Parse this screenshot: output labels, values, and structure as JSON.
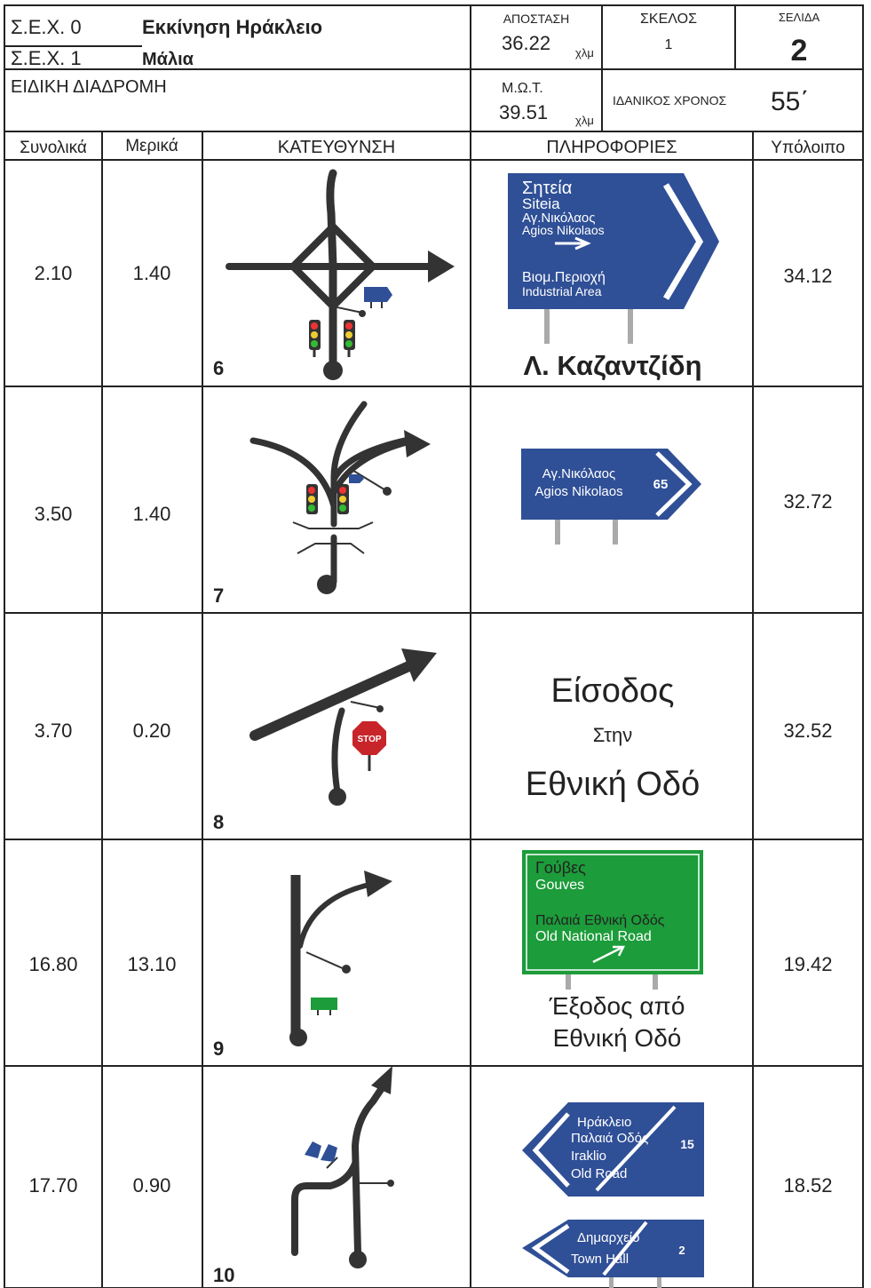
{
  "header": {
    "sex0_label": "Σ.Ε.Χ. 0",
    "sex0_name": "Εκκίνηση Ηράκλειο",
    "sex1_label": "Σ.Ε.Χ. 1",
    "sex1_name": "Μάλια",
    "stage": "ΕΙΔΙΚΗ ΔΙΑΔΡΟΜΗ",
    "distance_label": "ΑΠΟΣΤΑΣΗ",
    "distance": "36.22",
    "distance_unit": "χλμ",
    "leg_label": "ΣΚΕΛΟΣ",
    "leg": "1",
    "page_label": "ΣΕΛΙΔΑ",
    "page": "2",
    "avg_label": "Μ.Ω.Τ.",
    "avg": "39.51",
    "avg_unit": "χλμ",
    "ideal_label": "ΙΔΑΝΙΚΟΣ ΧΡΟΝΟΣ",
    "ideal": "55΄"
  },
  "columns": [
    "Συνολικά",
    "Μερικά",
    "ΚΑΤΕΥΘΥΝΣΗ",
    "ΠΛΗΡΟΦΟΡΙΕΣ",
    "Υπόλοιπο"
  ],
  "rows": [
    {
      "total": "2.10",
      "partial": "1.40",
      "number": "6",
      "remaining": "34.12",
      "sign": [
        "Σητεία",
        "Siteia",
        "Αγ.Νικόλαος",
        "Agios Nikolaos",
        "Βιομ.Περιοχή",
        "Industrial Area"
      ],
      "caption": "Λ. Καζαντζίδη"
    },
    {
      "total": "3.50",
      "partial": "1.40",
      "number": "7",
      "remaining": "32.72",
      "sign": [
        "Αγ.Νικόλαος",
        "Agios Nikolaos"
      ],
      "sign_number": "65"
    },
    {
      "total": "3.70",
      "partial": "0.20",
      "number": "8",
      "remaining": "32.52",
      "stop": "STOP",
      "text": [
        "Είσοδος",
        "Στην",
        "Εθνική Οδό"
      ]
    },
    {
      "total": "16.80",
      "partial": "13.10",
      "number": "9",
      "remaining": "19.42",
      "sign": [
        "Γούβες",
        "Gouves",
        "Παλαιά Εθνική Οδός",
        "Old National Road"
      ],
      "caption": [
        "Έξοδος από",
        "Εθνική Οδό"
      ]
    },
    {
      "total": "17.70",
      "partial": "0.90",
      "number": "10",
      "remaining": "18.52",
      "signs": [
        {
          "lines": [
            "Ηράκλειο",
            "Παλαιά Οδός",
            "Iraklio",
            "Old Road"
          ],
          "number": "15"
        },
        {
          "lines": [
            "Δημαρχείο",
            "Town Hall"
          ],
          "number": "2"
        }
      ]
    }
  ]
}
